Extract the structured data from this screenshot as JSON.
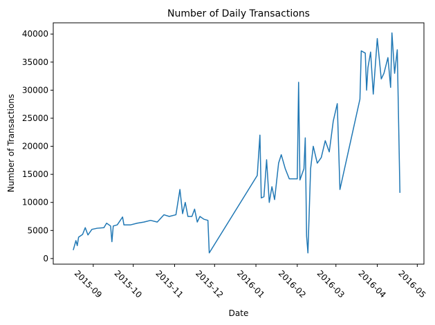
{
  "chart_data": {
    "type": "line",
    "title": "Number of Daily Transactions",
    "xlabel": "Date",
    "ylabel": "Number of Transactions",
    "x": [
      "2015-08-17",
      "2015-08-19",
      "2015-08-20",
      "2015-08-21",
      "2015-08-24",
      "2015-08-26",
      "2015-08-28",
      "2015-08-31",
      "2015-09-04",
      "2015-09-09",
      "2015-09-11",
      "2015-09-14",
      "2015-09-15",
      "2015-09-16",
      "2015-09-19",
      "2015-09-23",
      "2015-09-24",
      "2015-09-29",
      "2015-10-04",
      "2015-10-09",
      "2015-10-14",
      "2015-10-19",
      "2015-10-24",
      "2015-10-28",
      "2015-11-02",
      "2015-11-05",
      "2015-11-07",
      "2015-11-09",
      "2015-11-11",
      "2015-11-14",
      "2015-11-16",
      "2015-11-18",
      "2015-11-20",
      "2015-11-23",
      "2015-11-26",
      "2015-11-27",
      "2016-01-02",
      "2016-01-04",
      "2016-01-05",
      "2016-01-07",
      "2016-01-09",
      "2016-01-11",
      "2016-01-13",
      "2016-01-15",
      "2016-01-18",
      "2016-01-20",
      "2016-01-23",
      "2016-01-26",
      "2016-02-01",
      "2016-02-02",
      "2016-02-03",
      "2016-02-06",
      "2016-02-07",
      "2016-02-08",
      "2016-02-09",
      "2016-02-11",
      "2016-02-13",
      "2016-02-16",
      "2016-02-19",
      "2016-02-22",
      "2016-02-25",
      "2016-02-28",
      "2016-03-02",
      "2016-03-04",
      "2016-03-19",
      "2016-03-20",
      "2016-03-23",
      "2016-03-24",
      "2016-03-25",
      "2016-03-27",
      "2016-03-29",
      "2016-04-01",
      "2016-04-04",
      "2016-04-06",
      "2016-04-09",
      "2016-04-11",
      "2016-04-12",
      "2016-04-14",
      "2016-04-16",
      "2016-04-18"
    ],
    "series": [
      {
        "name": "Transactions",
        "color": "#1f77b4",
        "values": [
          1500,
          3200,
          2300,
          3800,
          4300,
          5500,
          4200,
          5200,
          5400,
          5500,
          6300,
          5800,
          3000,
          5800,
          6000,
          7400,
          6000,
          6000,
          6300,
          6500,
          6800,
          6500,
          7800,
          7500,
          7800,
          12300,
          8000,
          10000,
          7500,
          7500,
          8800,
          6500,
          7500,
          7000,
          6800,
          1000,
          14800,
          22000,
          10800,
          11000,
          17600,
          10000,
          12800,
          10500,
          17000,
          18500,
          16000,
          14200,
          14200,
          31400,
          14000,
          16000,
          21500,
          4000,
          1000,
          16000,
          20000,
          17000,
          18000,
          21000,
          19000,
          24500,
          27600,
          12300,
          28400,
          37000,
          36600,
          30000,
          34000,
          36800,
          29300,
          39200,
          32000,
          33000,
          35800,
          30500,
          40200,
          33000,
          37200,
          11700
        ]
      }
    ],
    "xlim": [
      "2015-08-02",
      "2016-05-06"
    ],
    "xticks": [
      {
        "value": "2015-09-01",
        "label": "2015-09"
      },
      {
        "value": "2015-10-01",
        "label": "2015-10"
      },
      {
        "value": "2015-11-01",
        "label": "2015-11"
      },
      {
        "value": "2015-12-01",
        "label": "2015-12"
      },
      {
        "value": "2016-01-01",
        "label": "2016-01"
      },
      {
        "value": "2016-02-01",
        "label": "2016-02"
      },
      {
        "value": "2016-03-01",
        "label": "2016-03"
      },
      {
        "value": "2016-04-01",
        "label": "2016-04"
      },
      {
        "value": "2016-05-01",
        "label": "2016-05"
      }
    ],
    "ylim": [
      -1000,
      42000
    ],
    "yticks": [
      0,
      5000,
      10000,
      15000,
      20000,
      25000,
      30000,
      35000,
      40000
    ],
    "grid": false
  }
}
